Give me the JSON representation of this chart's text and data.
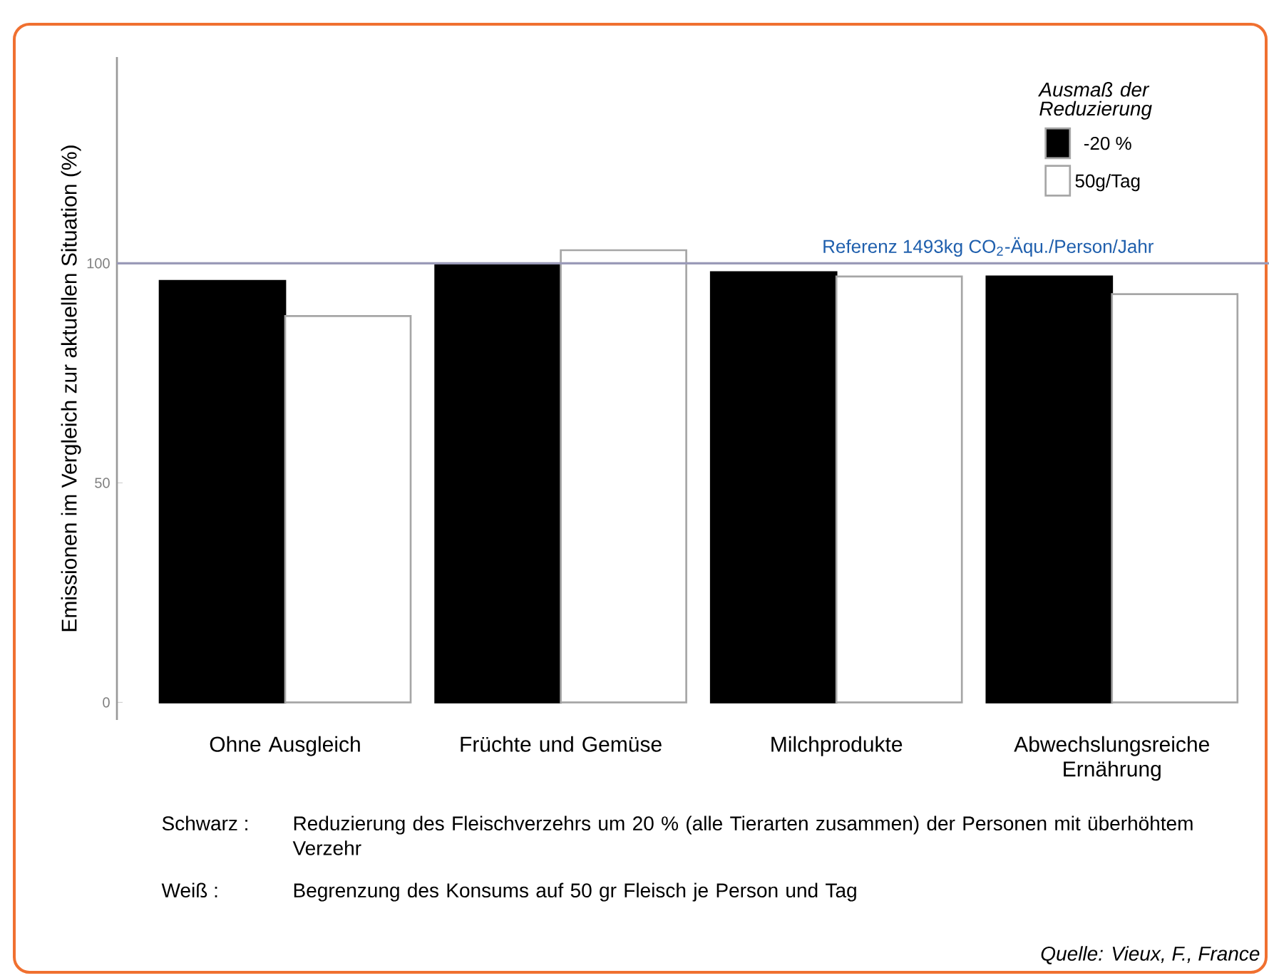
{
  "chart_data": {
    "type": "bar",
    "ylabel": "Emissionen im Vergleich zur aktuellen Situation (%)",
    "legend_title": "Ausmaß der Reduzierung",
    "categories": [
      "Ohne Ausgleich",
      "Früchte und Gemüse",
      "Milchprodukte",
      "Abwechslungsreiche Ernährung"
    ],
    "series": [
      {
        "name": "-20 %",
        "color": "#000000",
        "values": [
          96,
          100,
          98,
          97
        ]
      },
      {
        "name": "50g/Tag",
        "color": "#ffffff",
        "values": [
          88,
          103,
          97,
          93
        ]
      }
    ],
    "ylim": [
      -4,
      147
    ],
    "yticks": [
      0,
      50,
      100
    ],
    "ref_lines": [
      {
        "axis": "y",
        "value": 100,
        "label": "Referenz 1493kg CO$_{2}$-Äqu./Person/Jahr",
        "color": "#9a9ab8"
      }
    ],
    "legend": "top right",
    "grid": false,
    "annotations": [
      "Schwarz :",
      "Reduzierung des Fleischverzehrs um 20 % (alle Tierarten zusammen) der Personen mit überhöhtem Verzehr",
      "Weiß :",
      "Begrenzung des Konsums auf 50 gr Fleisch je Person und Tag",
      "Quelle: Vieux, F., France"
    ]
  }
}
